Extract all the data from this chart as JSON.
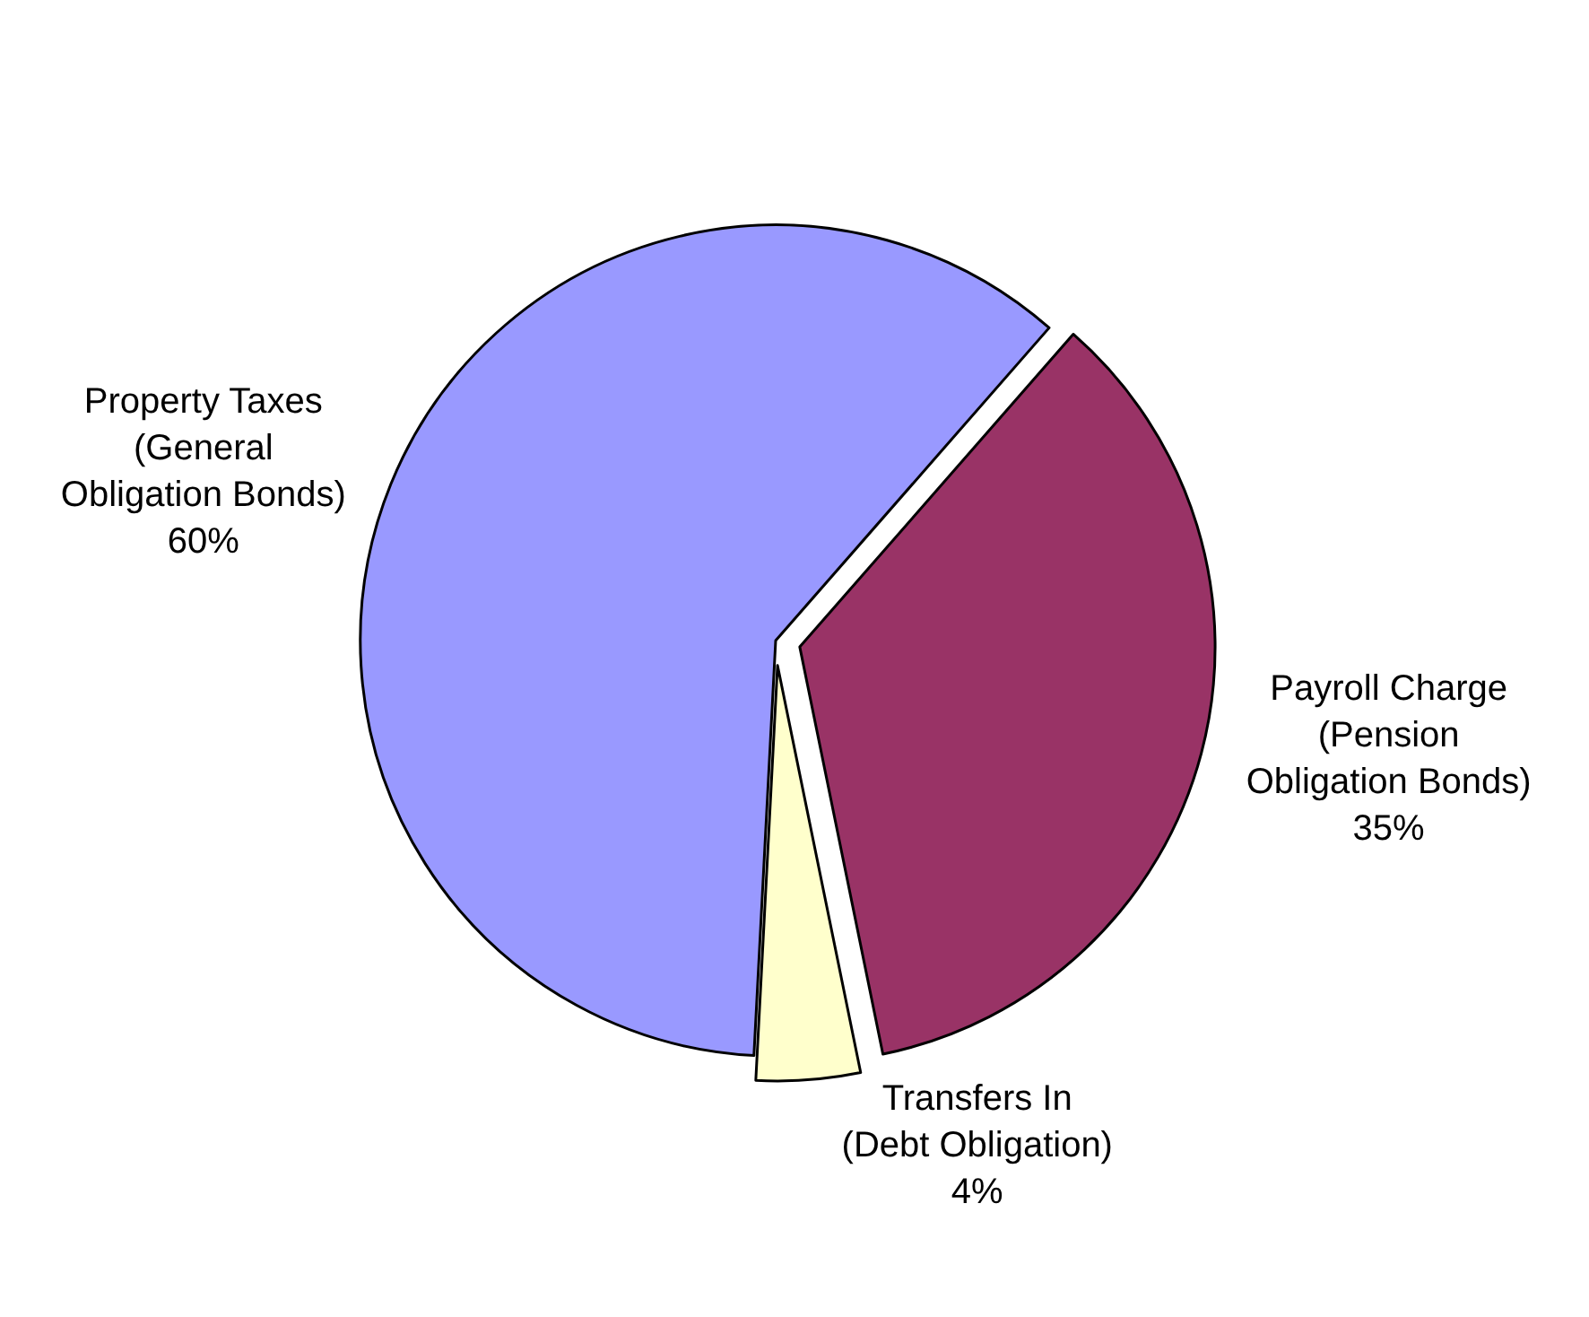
{
  "chart_data": {
    "type": "pie",
    "categories": [
      "Property Taxes (General Obligation Bonds)",
      "Payroll Charge (Pension Obligation Bonds)",
      "Transfers In (Debt Obligation)"
    ],
    "values": [
      60,
      35,
      4
    ],
    "value_labels": [
      "60%",
      "35%",
      "4%"
    ],
    "colors": [
      "#9999ff",
      "#993366",
      "#ffffcc"
    ],
    "legend": false
  }
}
